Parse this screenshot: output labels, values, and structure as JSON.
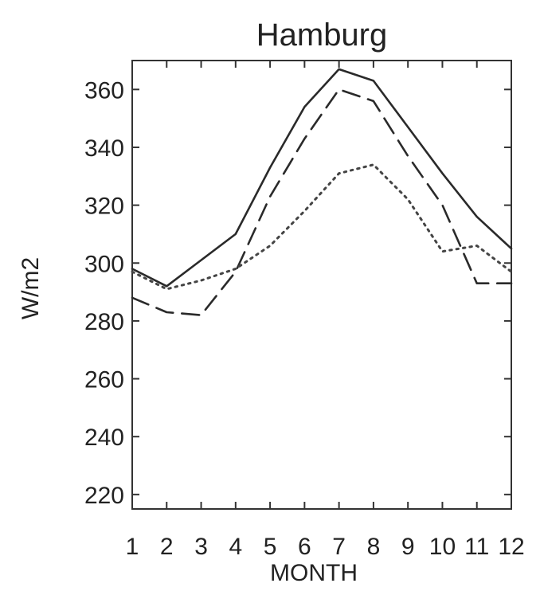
{
  "chart_data": {
    "type": "line",
    "title": "Hamburg",
    "xlabel": "MONTH",
    "ylabel": "W/m2",
    "x": [
      1,
      2,
      3,
      4,
      5,
      6,
      7,
      8,
      9,
      10,
      11,
      12
    ],
    "x_tick_labels": [
      "1",
      "2",
      "3",
      "4",
      "5",
      "6",
      "7",
      "8",
      "9",
      "10",
      "11",
      "12"
    ],
    "xlim": [
      1,
      12
    ],
    "ylim": [
      215,
      370
    ],
    "y_ticks": [
      220,
      240,
      260,
      280,
      300,
      320,
      340,
      360
    ],
    "grid": false,
    "series": [
      {
        "style": "solid",
        "color": "#2a2a2a",
        "values": [
          298,
          292,
          301,
          310,
          333,
          354,
          367,
          363,
          347,
          331,
          316,
          305
        ]
      },
      {
        "style": "dashed",
        "color": "#2a2a2a",
        "values": [
          288,
          283,
          282,
          297,
          323,
          343,
          360,
          356,
          337,
          320,
          293,
          293
        ]
      },
      {
        "style": "dotted",
        "color": "#444444",
        "values": [
          297,
          291,
          294,
          298,
          306,
          318,
          331,
          334,
          322,
          304,
          306,
          297
        ]
      }
    ]
  }
}
